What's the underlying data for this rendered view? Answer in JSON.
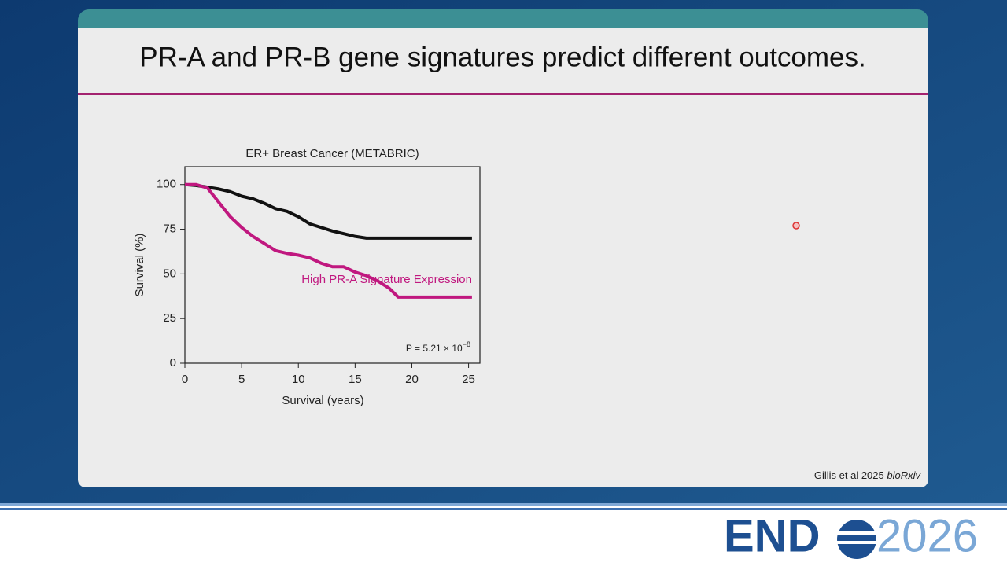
{
  "slide_title": "PR-A and PR-B gene signatures predict different outcomes.",
  "citation": {
    "authors": "Gillis et al 2025",
    "journal": "bioRxiv"
  },
  "logo": {
    "left": "END",
    "right": "2026"
  },
  "chart_data": {
    "type": "line",
    "title": "ER+ Breast Cancer (METABRIC)",
    "x_label": "Survival (years)",
    "y_label": "Survival (%)",
    "xlim": [
      0,
      26
    ],
    "ylim": [
      0,
      110
    ],
    "xticks": [
      0,
      5,
      10,
      15,
      20,
      25
    ],
    "yticks": [
      0,
      25,
      50,
      75,
      100
    ],
    "annotations": {
      "p_value": "P = 5.21 × 10",
      "p_exponent": "−8"
    },
    "series": [
      {
        "color": "#111111",
        "x": [
          0,
          1,
          2,
          3,
          4,
          5,
          6,
          7,
          8,
          9,
          10,
          11,
          12,
          13,
          14,
          15,
          16,
          25.3
        ],
        "values": [
          100,
          99.5,
          98.5,
          97.5,
          96,
          93.5,
          92,
          89.5,
          86.5,
          85,
          82,
          78,
          76,
          74,
          72.5,
          71,
          70,
          70
        ]
      },
      {
        "name": "High PR-A Signature Expression",
        "color": "#c0187f",
        "x": [
          0,
          1,
          2,
          3,
          4,
          5,
          6,
          7,
          8,
          9,
          10,
          11,
          12,
          13,
          14,
          15,
          16,
          17,
          18,
          18.8,
          25.3
        ],
        "values": [
          100,
          100,
          98,
          90,
          82,
          76,
          71,
          67,
          63,
          61.5,
          60.5,
          59,
          56,
          54,
          54,
          51,
          49,
          46,
          42,
          37,
          37
        ]
      }
    ]
  }
}
